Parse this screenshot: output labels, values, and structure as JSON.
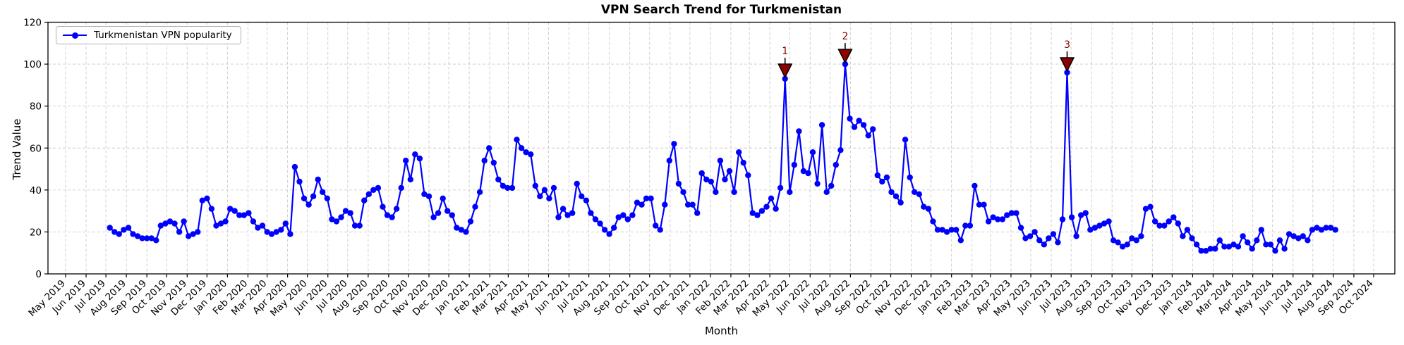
{
  "chart_data": {
    "type": "line",
    "title": "VPN Search Trend for Turkmenistan",
    "xlabel": "Month",
    "ylabel": "Trend Value",
    "legend": {
      "label": "Turkmenistan VPN popularity",
      "position": "upper left"
    },
    "line_color": "#0000ff",
    "marker": "circle",
    "annotation_color": "#8b0000",
    "grid": true,
    "grid_color": "#c9c9c9",
    "ylim": [
      0,
      120
    ],
    "yticks": [
      0,
      20,
      40,
      60,
      80,
      100,
      120
    ],
    "x_start_date": "2019-07-07",
    "frequency_days": 7,
    "values": [
      22,
      20,
      19,
      21,
      22,
      19,
      18,
      17,
      17,
      17,
      16,
      23,
      24,
      25,
      24,
      20,
      25,
      18,
      19,
      20,
      35,
      36,
      31,
      23,
      24,
      25,
      31,
      30,
      28,
      28,
      29,
      25,
      22,
      23,
      20,
      19,
      20,
      21,
      24,
      19,
      51,
      44,
      36,
      33,
      37,
      45,
      39,
      36,
      26,
      25,
      27,
      30,
      29,
      23,
      23,
      35,
      38,
      40,
      41,
      32,
      28,
      27,
      31,
      41,
      54,
      45,
      57,
      55,
      38,
      37,
      27,
      29,
      36,
      30,
      28,
      22,
      21,
      20,
      25,
      32,
      39,
      54,
      60,
      53,
      45,
      42,
      41,
      41,
      64,
      60,
      58,
      57,
      42,
      37,
      40,
      36,
      41,
      27,
      31,
      28,
      29,
      43,
      37,
      35,
      29,
      26,
      24,
      21,
      19,
      22,
      27,
      28,
      26,
      28,
      34,
      33,
      36,
      36,
      23,
      21,
      33,
      54,
      62,
      43,
      39,
      33,
      33,
      29,
      48,
      45,
      44,
      39,
      54,
      45,
      49,
      39,
      58,
      53,
      47,
      29,
      28,
      30,
      32,
      36,
      31,
      41,
      93,
      39,
      52,
      68,
      49,
      48,
      58,
      43,
      71,
      39,
      42,
      52,
      59,
      100,
      74,
      70,
      73,
      71,
      66,
      69,
      47,
      44,
      46,
      39,
      37,
      34,
      64,
      46,
      39,
      38,
      32,
      31,
      25,
      21,
      21,
      20,
      21,
      21,
      16,
      23,
      23,
      42,
      33,
      33,
      25,
      27,
      26,
      26,
      28,
      29,
      29,
      22,
      17,
      18,
      20,
      16,
      14,
      17,
      19,
      15,
      26,
      96,
      27,
      18,
      28,
      29,
      21,
      22,
      23,
      24,
      25,
      16,
      15,
      13,
      14,
      17,
      16,
      18,
      31,
      32,
      25,
      23,
      23,
      25,
      27,
      24,
      18,
      21,
      17,
      14,
      11,
      11,
      12,
      12,
      16,
      13,
      13,
      14,
      13,
      18,
      15,
      12,
      16,
      21,
      14,
      14,
      11,
      16,
      12,
      19,
      18,
      17,
      18,
      16,
      21,
      22,
      21,
      22,
      22,
      21
    ],
    "annotations": [
      {
        "label": "1",
        "index": 146,
        "date": "2022-04-24",
        "value": 93
      },
      {
        "label": "2",
        "index": 159,
        "date": "2022-07-24",
        "value": 100
      },
      {
        "label": "3",
        "index": 207,
        "date": "2023-06-25",
        "value": 96
      }
    ],
    "xticklabels": [
      "May 2019",
      "Jun 2019",
      "Jul 2019",
      "Aug 2019",
      "Sep 2019",
      "Oct 2019",
      "Nov 2019",
      "Dec 2019",
      "Jan 2020",
      "Feb 2020",
      "Mar 2020",
      "Apr 2020",
      "May 2020",
      "Jun 2020",
      "Jul 2020",
      "Aug 2020",
      "Sep 2020",
      "Oct 2020",
      "Nov 2020",
      "Dec 2020",
      "Jan 2021",
      "Feb 2021",
      "Mar 2021",
      "Apr 2021",
      "May 2021",
      "Jun 2021",
      "Jul 2021",
      "Aug 2021",
      "Sep 2021",
      "Oct 2021",
      "Nov 2021",
      "Dec 2021",
      "Jan 2022",
      "Feb 2022",
      "Mar 2022",
      "Apr 2022",
      "May 2022",
      "Jun 2022",
      "Jul 2022",
      "Aug 2022",
      "Sep 2022",
      "Oct 2022",
      "Nov 2022",
      "Dec 2022",
      "Jan 2023",
      "Feb 2023",
      "Mar 2023",
      "Apr 2023",
      "May 2023",
      "Jun 2023",
      "Jul 2023",
      "Aug 2023",
      "Sep 2023",
      "Oct 2023",
      "Nov 2023",
      "Dec 2023",
      "Jan 2024",
      "Feb 2024",
      "Mar 2024",
      "Apr 2024",
      "May 2024",
      "Jun 2024",
      "Jul 2024",
      "Aug 2024",
      "Sep 2024",
      "Oct 2024"
    ]
  }
}
